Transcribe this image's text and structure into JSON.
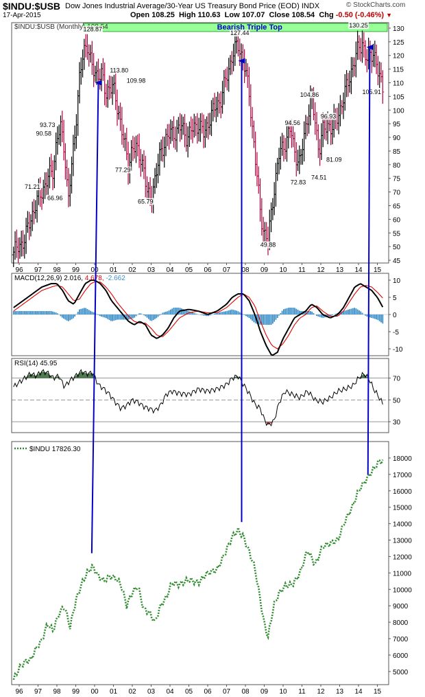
{
  "header": {
    "symbol": "$INDU:$USB",
    "description": "Dow Jones Industrial Average/30-Year US Treasury Bond Price (EOD) INDX",
    "brand": "© StockCharts.com",
    "date": "17-Apr-2015",
    "open_label": "Open",
    "open": "108.25",
    "high_label": "High",
    "high": "110.63",
    "low_label": "Low",
    "low": "107.07",
    "close_label": "Close",
    "close": "108.54",
    "chg_label": "Chg",
    "chg": "-0.50 (-0.46%)"
  },
  "colors": {
    "up": "#000000",
    "down": "#b0003a",
    "arrow": "#0000c8",
    "macd_line": "#000000",
    "signal_line": "#e00000",
    "histogram": "#3a8ec8",
    "rsi_fill": "#4f7a4f",
    "rsi_low_fill": "#b06060",
    "indu_line": "#2e8b2e",
    "banner_fill": "#99ff99",
    "banner_text": "#0000c8"
  },
  "chart_data": [
    {
      "type": "line",
      "panel": "price",
      "legend": "$INDU:$USB (Monthly) 108.54",
      "banner": "Bearish Triple Top",
      "y_range": [
        44,
        132
      ],
      "y_ticks": [
        45,
        50,
        55,
        60,
        65,
        70,
        75,
        80,
        85,
        90,
        95,
        100,
        105,
        110,
        115,
        120,
        125,
        130
      ],
      "x_range": [
        1995.6,
        2015.6
      ],
      "x_labels": [
        "96",
        "97",
        "98",
        "99",
        "00",
        "01",
        "02",
        "03",
        "04",
        "05",
        "06",
        "07",
        "08",
        "09",
        "10",
        "11",
        "12",
        "13",
        "14",
        "15"
      ],
      "x_label_years": [
        1996,
        1997,
        1998,
        1999,
        2000,
        2001,
        2002,
        2003,
        2004,
        2005,
        2006,
        2007,
        2008,
        2009,
        2010,
        2011,
        2012,
        2013,
        2014,
        2015
      ],
      "series": [
        {
          "x": [
            1995.7,
            1996.0,
            1996.3,
            1996.6,
            1996.9,
            1997.2,
            1997.5,
            1997.8,
            1998.0,
            1998.2,
            1998.4,
            1998.6,
            1998.8,
            1999.0,
            1999.2,
            1999.4,
            1999.6,
            1999.8,
            2000.0,
            2000.2,
            2000.4,
            2000.6,
            2000.8,
            2001.0,
            2001.2,
            2001.4,
            2001.6,
            2001.8,
            2002.0,
            2002.3,
            2002.6,
            2002.8,
            2003.0,
            2003.2,
            2003.5,
            2003.8,
            2004.0,
            2004.3,
            2004.6,
            2004.9,
            2005.2,
            2005.5,
            2005.8,
            2006.1,
            2006.4,
            2006.7,
            2007.0,
            2007.3,
            2007.6,
            2007.9,
            2008.2,
            2008.5,
            2008.8,
            2009.0,
            2009.2,
            2009.5,
            2009.8,
            2010.1,
            2010.4,
            2010.6,
            2010.9,
            2011.1,
            2011.3,
            2011.5,
            2011.7,
            2011.9,
            2012.1,
            2012.4,
            2012.6,
            2012.9,
            2013.2,
            2013.5,
            2013.8,
            2014.0,
            2014.2,
            2014.4,
            2014.6,
            2014.8,
            2015.0,
            2015.3
          ],
          "y": [
            48,
            50,
            53,
            60,
            66,
            70,
            75,
            78,
            90,
            93,
            86,
            67,
            80,
            95,
            112,
            120,
            125,
            118,
            112,
            114,
            113,
            104,
            110,
            108,
            100,
            96,
            87,
            78,
            88,
            84,
            80,
            68,
            68,
            75,
            84,
            90,
            91,
            92,
            94,
            90,
            93,
            95,
            91,
            97,
            101,
            104,
            112,
            120,
            124,
            118,
            106,
            84,
            62,
            55,
            52,
            70,
            84,
            88,
            93,
            85,
            80,
            90,
            98,
            104,
            96,
            85,
            92,
            95,
            93,
            98,
            104,
            112,
            118,
            123,
            125,
            118,
            120,
            122,
            114,
            108.5
          ]
        }
      ],
      "annotations": [
        {
          "x": 1996.7,
          "y": 71.21,
          "text": "71.21"
        },
        {
          "x": 1997.3,
          "y": 90.58,
          "text": "90.58"
        },
        {
          "x": 1997.5,
          "y": 93.73,
          "text": "93.73"
        },
        {
          "x": 1997.9,
          "y": 66.96,
          "text": "66.96"
        },
        {
          "x": 1999.9,
          "y": 128.87,
          "text": "128.87"
        },
        {
          "x": 2001.3,
          "y": 113.8,
          "text": "113.80"
        },
        {
          "x": 2002.2,
          "y": 109.98,
          "text": "109.98"
        },
        {
          "x": 2001.5,
          "y": 77.29,
          "text": "77.29"
        },
        {
          "x": 2002.7,
          "y": 65.79,
          "text": "65.79"
        },
        {
          "x": 2007.7,
          "y": 127.44,
          "text": "127.44"
        },
        {
          "x": 2009.2,
          "y": 49.88,
          "text": "49.88"
        },
        {
          "x": 2010.5,
          "y": 94.56,
          "text": "94.56"
        },
        {
          "x": 2010.8,
          "y": 72.83,
          "text": "72.83"
        },
        {
          "x": 2011.4,
          "y": 104.86,
          "text": "104.86"
        },
        {
          "x": 2011.9,
          "y": 74.51,
          "text": "74.51"
        },
        {
          "x": 2012.4,
          "y": 96.93,
          "text": "96.93"
        },
        {
          "x": 2012.7,
          "y": 81.09,
          "text": "81.09"
        },
        {
          "x": 2014.0,
          "y": 130.25,
          "text": "130.25"
        },
        {
          "x": 2014.7,
          "y": 105.91,
          "text": "105.91"
        }
      ]
    },
    {
      "type": "line",
      "panel": "macd",
      "legend_name": "MACD(12,26,9)",
      "legend_values": [
        "2.016",
        "4.678",
        "-2.662"
      ],
      "y_range": [
        -12,
        12
      ],
      "y_ticks": [
        10,
        5,
        0,
        -5,
        -10
      ],
      "series": [
        {
          "name": "MACD",
          "x": [
            1995.7,
            1996.2,
            1996.7,
            1997.2,
            1997.7,
            1998.0,
            1998.3,
            1998.6,
            1998.9,
            1999.2,
            1999.5,
            1999.8,
            2000.0,
            2000.3,
            2000.6,
            2000.9,
            2001.2,
            2001.5,
            2001.8,
            2002.1,
            2002.4,
            2002.7,
            2003.0,
            2003.3,
            2003.6,
            2003.9,
            2004.2,
            2004.5,
            2005.0,
            2005.5,
            2006.0,
            2006.5,
            2007.0,
            2007.3,
            2007.6,
            2007.9,
            2008.2,
            2008.5,
            2008.8,
            2009.1,
            2009.4,
            2009.7,
            2010.0,
            2010.3,
            2010.6,
            2010.9,
            2011.2,
            2011.5,
            2011.8,
            2012.1,
            2012.5,
            2012.9,
            2013.2,
            2013.5,
            2013.8,
            2014.1,
            2014.4,
            2014.7,
            2015.0,
            2015.3
          ],
          "y": [
            2,
            4,
            6,
            8,
            9,
            9,
            7,
            4,
            3,
            6,
            9,
            10,
            10,
            9,
            7,
            4,
            2,
            0,
            -2,
            -3,
            -2,
            -3,
            -6,
            -7,
            -6,
            -4,
            -1,
            1,
            1.5,
            1,
            0,
            1,
            3,
            5,
            6,
            6,
            4,
            0,
            -5,
            -9,
            -12,
            -11,
            -7,
            -4,
            -1,
            0,
            1,
            3,
            2,
            0,
            -1,
            0,
            2,
            5,
            8,
            9,
            8,
            7,
            5,
            2
          ]
        },
        {
          "name": "Signal",
          "x": [
            1995.7,
            1996.2,
            1996.7,
            1997.2,
            1997.7,
            1998.0,
            1998.3,
            1998.6,
            1998.9,
            1999.2,
            1999.5,
            1999.8,
            2000.0,
            2000.3,
            2000.6,
            2000.9,
            2001.2,
            2001.5,
            2001.8,
            2002.1,
            2002.4,
            2002.7,
            2003.0,
            2003.3,
            2003.6,
            2003.9,
            2004.2,
            2004.5,
            2005.0,
            2005.5,
            2006.0,
            2006.5,
            2007.0,
            2007.3,
            2007.6,
            2007.9,
            2008.2,
            2008.5,
            2008.8,
            2009.1,
            2009.4,
            2009.7,
            2010.0,
            2010.3,
            2010.6,
            2010.9,
            2011.2,
            2011.5,
            2011.8,
            2012.1,
            2012.5,
            2012.9,
            2013.2,
            2013.5,
            2013.8,
            2014.1,
            2014.4,
            2014.7,
            2015.0,
            2015.3
          ],
          "y": [
            1,
            3,
            5,
            7,
            8,
            8.5,
            8,
            6,
            4,
            4.5,
            7,
            9,
            9.5,
            9.5,
            8,
            6,
            3.5,
            1.5,
            -0.5,
            -2,
            -2.5,
            -2.5,
            -4,
            -6,
            -6.5,
            -5,
            -3,
            -1,
            0.5,
            1,
            0.5,
            0.5,
            2,
            3.5,
            5,
            6,
            5,
            2.5,
            -2,
            -6,
            -9,
            -10,
            -8.5,
            -6,
            -3,
            -1,
            0,
            2,
            2.5,
            1,
            -0.5,
            -0.5,
            1,
            3.5,
            6,
            8,
            8.5,
            8,
            6.5,
            4.7
          ]
        },
        {
          "name": "Histogram",
          "x": [
            1995.7,
            1996.2,
            1996.7,
            1997.2,
            1997.7,
            1998.0,
            1998.3,
            1998.6,
            1998.9,
            1999.2,
            1999.5,
            1999.8,
            2000.0,
            2000.3,
            2000.6,
            2000.9,
            2001.2,
            2001.5,
            2001.8,
            2002.1,
            2002.4,
            2002.7,
            2003.0,
            2003.3,
            2003.6,
            2003.9,
            2004.2,
            2004.5,
            2005.0,
            2005.5,
            2006.0,
            2006.5,
            2007.0,
            2007.3,
            2007.6,
            2007.9,
            2008.2,
            2008.5,
            2008.8,
            2009.1,
            2009.4,
            2009.7,
            2010.0,
            2010.3,
            2010.6,
            2010.9,
            2011.2,
            2011.5,
            2011.8,
            2012.1,
            2012.5,
            2012.9,
            2013.2,
            2013.5,
            2013.8,
            2014.1,
            2014.4,
            2014.7,
            2015.0,
            2015.3
          ],
          "y": [
            1,
            1,
            1,
            1,
            1,
            0.5,
            -1,
            -2,
            -1,
            1.5,
            2,
            1,
            0.5,
            -0.5,
            -1,
            -2,
            -1.5,
            -1.5,
            -1.5,
            -1,
            0.5,
            -0.5,
            -2,
            -1,
            0.5,
            1,
            2,
            2,
            1,
            0,
            -0.5,
            0.5,
            1,
            1.5,
            1,
            0,
            -1,
            -2.5,
            -3,
            -3,
            -3,
            -1,
            1.5,
            2,
            2,
            1,
            1,
            1,
            -0.5,
            -1,
            -0.5,
            0.5,
            1,
            1.5,
            2,
            1,
            -0.5,
            -1,
            -1.5,
            -2.7
          ]
        }
      ]
    },
    {
      "type": "line",
      "panel": "rsi",
      "legend_name": "RSI(14)",
      "legend_value": "45.95",
      "y_range": [
        20,
        88
      ],
      "y_ticks": [
        70,
        50,
        30
      ],
      "series": [
        {
          "name": "RSI",
          "x": [
            1995.7,
            1996.0,
            1996.3,
            1996.6,
            1996.9,
            1997.2,
            1997.5,
            1997.8,
            1998.1,
            1998.4,
            1998.7,
            1999.0,
            1999.3,
            1999.6,
            1999.9,
            2000.2,
            2000.5,
            2000.8,
            2001.1,
            2001.4,
            2001.7,
            2002.0,
            2002.3,
            2002.6,
            2002.9,
            2003.2,
            2003.5,
            2003.8,
            2004.1,
            2004.5,
            2005.0,
            2005.5,
            2006.0,
            2006.5,
            2007.0,
            2007.3,
            2007.6,
            2007.9,
            2008.2,
            2008.5,
            2008.8,
            2009.0,
            2009.2,
            2009.5,
            2009.8,
            2010.1,
            2010.5,
            2010.9,
            2011.3,
            2011.7,
            2012.1,
            2012.5,
            2012.9,
            2013.3,
            2013.7,
            2014.0,
            2014.3,
            2014.6,
            2014.8,
            2015.0,
            2015.3
          ],
          "y": [
            62,
            66,
            70,
            74,
            72,
            76,
            75,
            70,
            72,
            62,
            68,
            72,
            76,
            74,
            75,
            64,
            60,
            55,
            48,
            42,
            45,
            50,
            48,
            44,
            42,
            40,
            45,
            55,
            58,
            56,
            55,
            60,
            58,
            60,
            64,
            70,
            72,
            64,
            56,
            46,
            42,
            32,
            27,
            30,
            48,
            58,
            55,
            52,
            58,
            50,
            48,
            52,
            58,
            60,
            63,
            70,
            74,
            68,
            60,
            55,
            46
          ]
        }
      ]
    },
    {
      "type": "line",
      "panel": "indu",
      "legend": "$INDU 17826.30",
      "y_range": [
        4200,
        19000
      ],
      "y_ticks": [
        5000,
        6000,
        7000,
        8000,
        9000,
        10000,
        11000,
        12000,
        13000,
        14000,
        15000,
        16000,
        17000,
        18000
      ],
      "series": [
        {
          "name": "$INDU",
          "x": [
            1995.7,
            1996.0,
            1996.3,
            1996.6,
            1996.9,
            1997.2,
            1997.5,
            1997.8,
            1998.1,
            1998.4,
            1998.7,
            1999.0,
            1999.3,
            1999.6,
            1999.9,
            2000.2,
            2000.5,
            2000.8,
            2001.1,
            2001.4,
            2001.7,
            2002.0,
            2002.3,
            2002.6,
            2002.9,
            2003.2,
            2003.5,
            2003.8,
            2004.1,
            2004.5,
            2005.0,
            2005.5,
            2006.0,
            2006.5,
            2007.0,
            2007.3,
            2007.6,
            2007.9,
            2008.2,
            2008.5,
            2008.8,
            2009.0,
            2009.2,
            2009.5,
            2009.8,
            2010.1,
            2010.5,
            2010.9,
            2011.3,
            2011.7,
            2012.1,
            2012.5,
            2012.9,
            2013.3,
            2013.7,
            2014.0,
            2014.3,
            2014.6,
            2014.9,
            2015.1,
            2015.3
          ],
          "y": [
            4500,
            5200,
            5600,
            5700,
            6400,
            6900,
            7900,
            7500,
            8500,
            9000,
            7700,
            9300,
            10300,
            11000,
            11400,
            10800,
            10500,
            10800,
            10700,
            10300,
            9000,
            9800,
            10200,
            8800,
            8600,
            8000,
            9000,
            9500,
            10400,
            10300,
            10600,
            10400,
            11000,
            11200,
            12400,
            13200,
            13600,
            13200,
            12300,
            11300,
            9300,
            7900,
            7100,
            9000,
            9800,
            10200,
            10300,
            11000,
            12400,
            11500,
            12600,
            12800,
            13000,
            14200,
            15100,
            16000,
            16500,
            17000,
            17500,
            17800,
            17826
          ]
        }
      ]
    }
  ],
  "arrows": [
    {
      "from_panel": "indu",
      "from_x": 1999.85,
      "from_y": 12200,
      "to_panel": "price",
      "to_x": 2000.2,
      "to_y": 110
    },
    {
      "from_panel": "indu",
      "from_x": 2007.8,
      "from_y": 14100,
      "to_panel": "price",
      "to_x": 2007.8,
      "to_y": 118
    },
    {
      "from_panel": "indu",
      "from_x": 2014.5,
      "from_y": 17000,
      "to_panel": "price",
      "to_x": 2014.6,
      "to_y": 123
    }
  ]
}
